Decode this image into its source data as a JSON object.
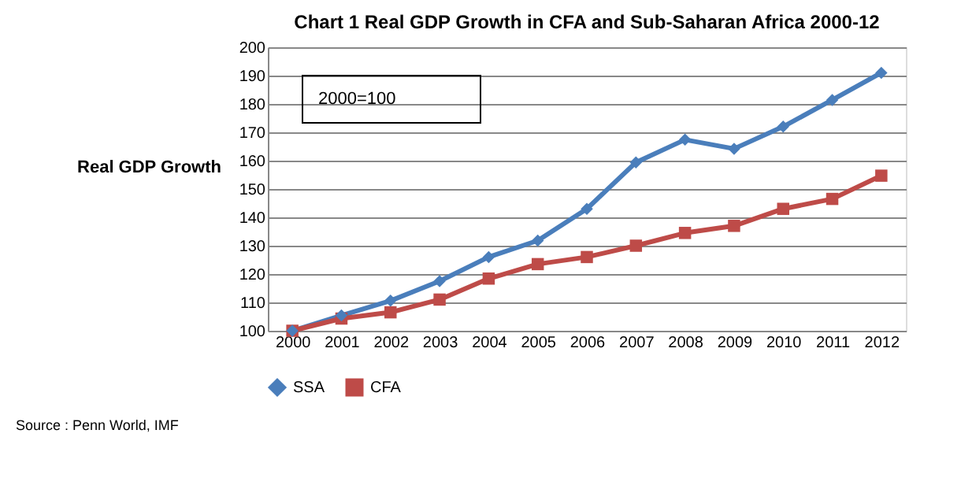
{
  "chart_data": {
    "type": "line",
    "title": "Chart 1 Real GDP Growth in CFA and Sub-Saharan Africa 2000-12",
    "ylabel": "Real GDP Growth",
    "categories": [
      "2000",
      "2001",
      "2002",
      "2003",
      "2004",
      "2005",
      "2006",
      "2007",
      "2008",
      "2009",
      "2010",
      "2011",
      "2012"
    ],
    "series": [
      {
        "name": "SSA",
        "color": "#4a7ebb",
        "marker": "diamond",
        "values": [
          100,
          105.4,
          110.6,
          117.5,
          126,
          131.8,
          143,
          159.4,
          167.4,
          164.2,
          172,
          181.4,
          191
        ]
      },
      {
        "name": "CFA",
        "color": "#be4b48",
        "marker": "square",
        "values": [
          100,
          104.3,
          106.5,
          111,
          118.4,
          123.5,
          126,
          130,
          134.5,
          137,
          143,
          146.5,
          154.7
        ]
      }
    ],
    "ylim": [
      100,
      200
    ],
    "yticks": [
      100,
      110,
      120,
      130,
      140,
      150,
      160,
      170,
      180,
      190,
      200
    ],
    "grid": "y",
    "legend": "bottom",
    "line_style": "solid",
    "annotations": [
      "2000=100",
      "Source : Penn World, IMF"
    ]
  }
}
